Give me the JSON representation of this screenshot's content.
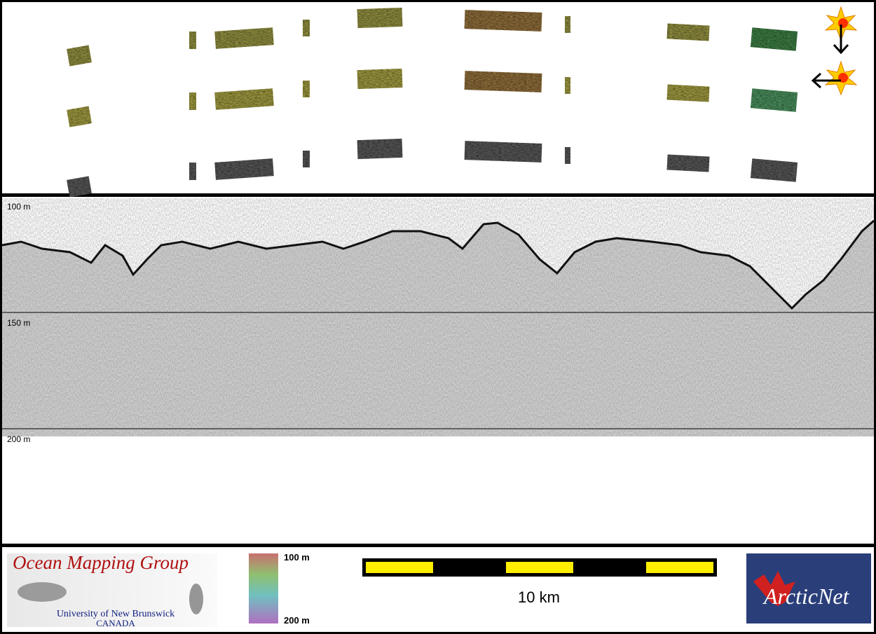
{
  "echogram": {
    "depth_labels": [
      "100 m",
      "150 m",
      "200 m"
    ]
  },
  "legend": {
    "colorbar_labels": [
      "100 m",
      "200 m"
    ],
    "scale_bar_label": "10 km"
  },
  "logos": {
    "ocean_mapping": {
      "title": "Ocean Mapping Group",
      "subtitle": "University of New Brunswick",
      "country": "CANADA"
    },
    "arcticnet": "ArcticNet"
  }
}
